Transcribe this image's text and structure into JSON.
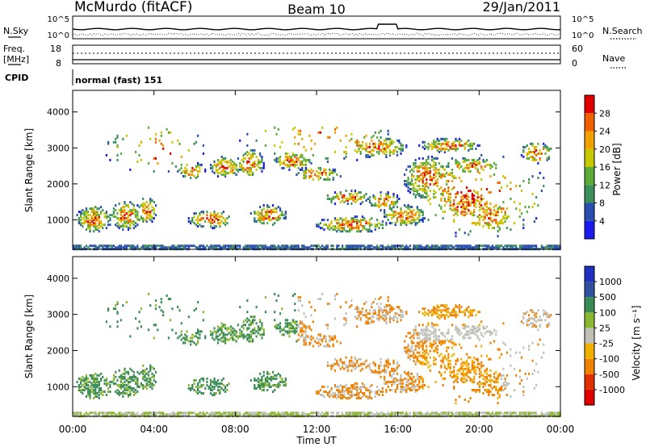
{
  "header": {
    "station": "McMurdo (fitACF)",
    "beam": "Beam 10",
    "date": "29/Jan/2011"
  },
  "top_panel": {
    "left_label": "N.Sky",
    "right_label": "N.Search",
    "left_ticks": [
      "10^5",
      "10^0"
    ],
    "right_ticks": [
      "10^5",
      "10^0"
    ]
  },
  "freq_panel": {
    "left_label_1": "Freq.",
    "left_label_2": "[MHz]",
    "left_ticks": [
      "18",
      "8"
    ],
    "right_label": "Nave",
    "right_ticks": [
      "60",
      "0"
    ]
  },
  "cpid": {
    "label": "CPID",
    "value": "normal (fast) 151"
  },
  "x_axis": {
    "title": "Time UT",
    "ticks": [
      "00:00",
      "04:00",
      "08:00",
      "12:00",
      "16:00",
      "20:00",
      "00:00"
    ]
  },
  "colors": {
    "power": [
      "#1b1bf0",
      "#2a4fb0",
      "#3b8f5a",
      "#5aaa3a",
      "#c8c800",
      "#f0a000",
      "#f06000",
      "#e00000"
    ],
    "velocity": [
      "#2030c0",
      "#3050a0",
      "#3a8a55",
      "#8ab830",
      "#c0c0b8",
      "#f0b000",
      "#f08000",
      "#e03000",
      "#e00000"
    ]
  },
  "chart_data": [
    {
      "type": "heatmap",
      "name": "power",
      "ylabel": "Slant Range [km]",
      "ylim": [
        180,
        4600
      ],
      "y_ticks": [
        "1000",
        "2000",
        "3000",
        "4000"
      ],
      "xlim_hours": [
        0,
        24
      ],
      "colorbar_title": "Power [dB]",
      "colorbar_ticks": [
        "4",
        "8",
        "12",
        "16",
        "20",
        "24",
        "28"
      ],
      "colorbar_range": [
        0,
        30
      ]
    },
    {
      "type": "heatmap",
      "name": "velocity",
      "ylabel": "Slant Range [km]",
      "ylim": [
        180,
        4600
      ],
      "y_ticks": [
        "1000",
        "2000",
        "3000",
        "4000"
      ],
      "xlim_hours": [
        0,
        24
      ],
      "colorbar_title": "Velocity [m s⁻¹]",
      "colorbar_ticks": [
        "1000",
        "500",
        "100",
        "25",
        "-25",
        "-100",
        "-500",
        "-1000"
      ]
    }
  ]
}
